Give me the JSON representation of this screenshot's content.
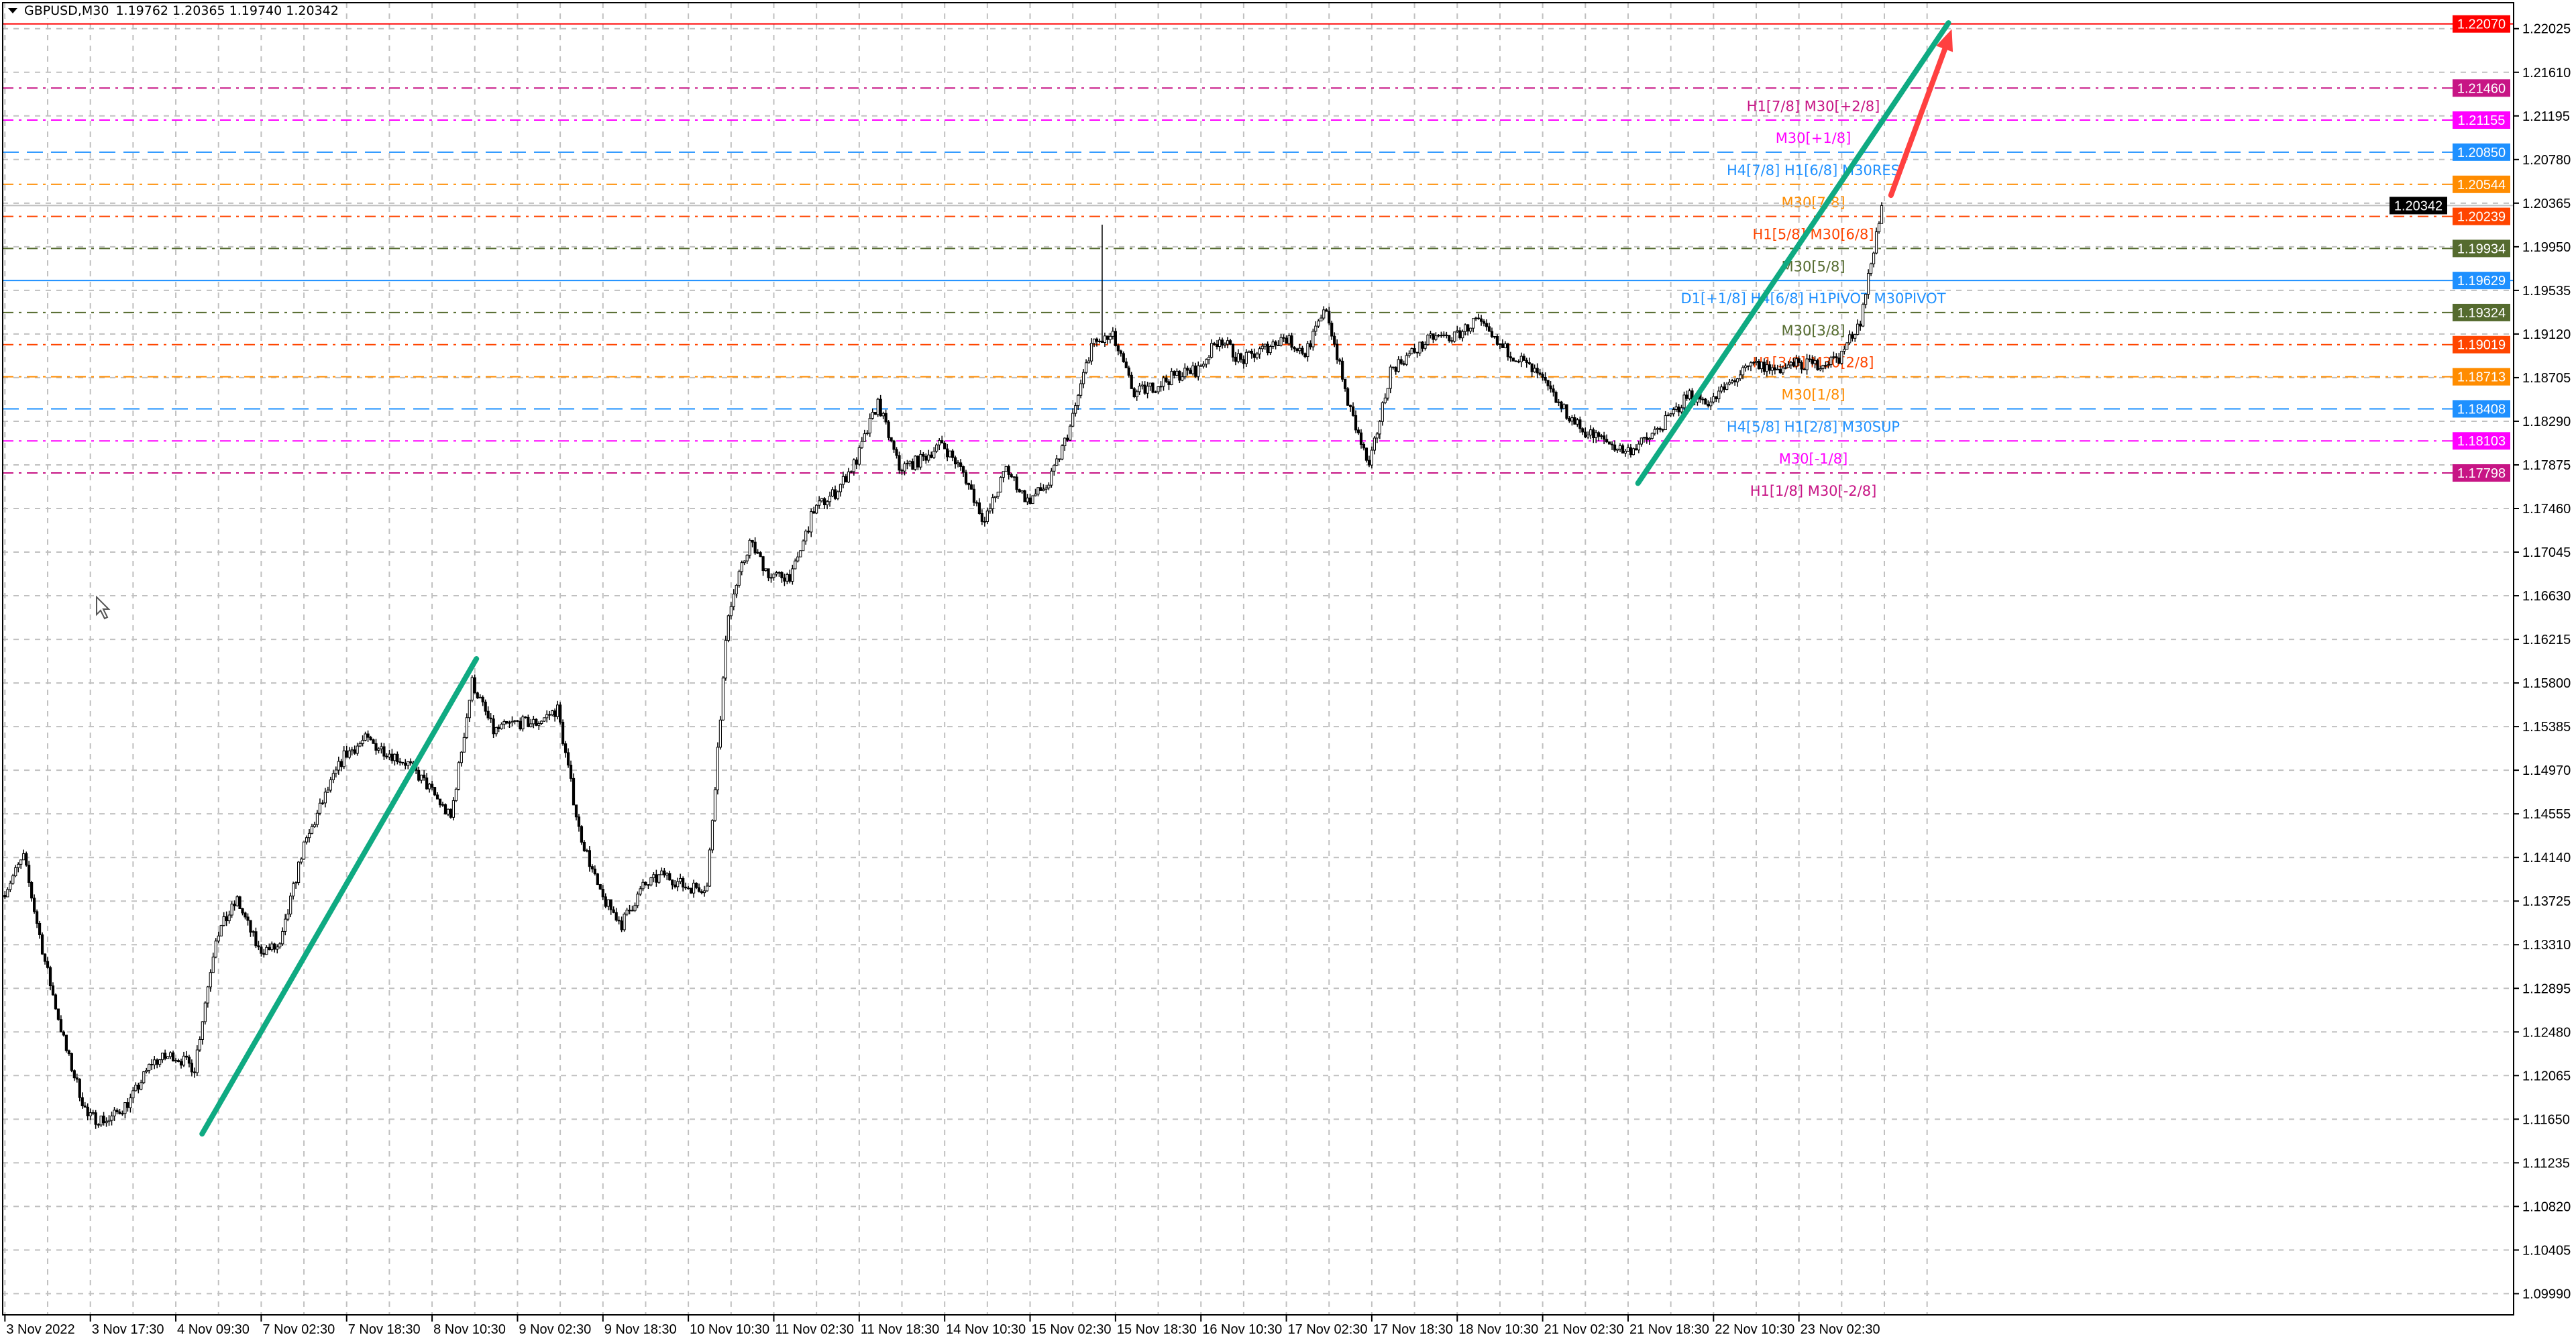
{
  "header": {
    "symbol": "GBPUSD,M30",
    "ohlc": "1.19762 1.20365 1.19740 1.20342",
    "menu_icon": "triangle-down-icon"
  },
  "chart_data": {
    "type": "candlestick",
    "symbol": "GBPUSD",
    "timeframe": "M30",
    "current_price": 1.20342,
    "price_ticks": [
      "1.22025",
      "1.21610",
      "1.21195",
      "1.20780",
      "1.20365",
      "1.19950",
      "1.19535",
      "1.19120",
      "1.18705",
      "1.18290",
      "1.17875",
      "1.17460",
      "1.17045",
      "1.16630",
      "1.16215",
      "1.15800",
      "1.15385",
      "1.14970",
      "1.14555",
      "1.14140",
      "1.13725",
      "1.13310",
      "1.12895",
      "1.12480",
      "1.12065",
      "1.11650",
      "1.11235",
      "1.10820",
      "1.10405",
      "1.09990"
    ],
    "time_ticks": [
      "3 Nov 2022",
      "3 Nov 17:30",
      "4 Nov 09:30",
      "7 Nov 02:30",
      "7 Nov 18:30",
      "8 Nov 10:30",
      "9 Nov 02:30",
      "9 Nov 18:30",
      "10 Nov 10:30",
      "11 Nov 02:30",
      "11 Nov 18:30",
      "14 Nov 10:30",
      "15 Nov 02:30",
      "15 Nov 18:30",
      "16 Nov 10:30",
      "17 Nov 02:30",
      "17 Nov 18:30",
      "18 Nov 10:30",
      "21 Nov 02:30",
      "21 Nov 18:30",
      "22 Nov 10:30",
      "23 Nov 02:30"
    ],
    "approx_closes_every_4h": [
      1.1378,
      1.1414,
      1.1315,
      1.123,
      1.1167,
      1.1164,
      1.1183,
      1.1219,
      1.1226,
      1.1214,
      1.1339,
      1.1373,
      1.1326,
      1.1328,
      1.1417,
      1.1467,
      1.1511,
      1.1526,
      1.1515,
      1.1503,
      1.148,
      1.1451,
      1.1581,
      1.1534,
      1.1542,
      1.1542,
      1.1555,
      1.1441,
      1.1378,
      1.1351,
      1.1386,
      1.1398,
      1.1386,
      1.1386,
      1.1648,
      1.1714,
      1.168,
      1.1683,
      1.1745,
      1.1761,
      1.1792,
      1.1847,
      1.1784,
      1.1792,
      1.1808,
      1.178,
      1.1733,
      1.1784,
      1.1753,
      1.1769,
      1.1823,
      1.1902,
      1.1909,
      1.1855,
      1.1863,
      1.1873,
      1.1878,
      1.1909,
      1.1886,
      1.1897,
      1.1909,
      1.1894,
      1.1936,
      1.1847,
      1.1784,
      1.1878,
      1.1894,
      1.1909,
      1.1909,
      1.1925,
      1.1902,
      1.1889,
      1.187,
      1.1842,
      1.182,
      1.1811,
      1.18,
      1.1811,
      1.1831,
      1.1855,
      1.1847,
      1.1867,
      1.1883,
      1.1878,
      1.1883,
      1.1883,
      1.1889,
      1.1925,
      1.20342
    ],
    "levels": [
      {
        "price": "1.22070",
        "label": "",
        "color": "#FF0000",
        "style": "solid"
      },
      {
        "price": "1.21460",
        "label": "H1[7/8] M30[+2/8]",
        "color": "#C71585",
        "style": "dashdot"
      },
      {
        "price": "1.21155",
        "label": "M30[+1/8]",
        "color": "#FF00FF",
        "style": "dashdot"
      },
      {
        "price": "1.20850",
        "label": "H4[7/8] H1[6/8] M30RES",
        "color": "#1E90FF",
        "style": "dash"
      },
      {
        "price": "1.20544",
        "label": "M30[7/8]",
        "color": "#FF8C00",
        "style": "dashdot"
      },
      {
        "price": "1.20239",
        "label": "H1[5/8] M30[6/8]",
        "color": "#FF4500",
        "style": "dashdot"
      },
      {
        "price": "1.19934",
        "label": "M30[5/8]",
        "color": "#556B2F",
        "style": "dashdot"
      },
      {
        "price": "1.19629",
        "label": "D1[+1/8] H4[6/8] H1PIVOT M30PIVOT",
        "color": "#1E90FF",
        "style": "solid"
      },
      {
        "price": "1.19324",
        "label": "M30[3/8]",
        "color": "#556B2F",
        "style": "dashdot"
      },
      {
        "price": "1.19019",
        "label": "H1[3/8] M30[2/8]",
        "color": "#FF4500",
        "style": "dashdot"
      },
      {
        "price": "1.18713",
        "label": "M30[1/8]",
        "color": "#FF8C00",
        "style": "dashdot"
      },
      {
        "price": "1.18408",
        "label": "H4[5/8] H1[2/8] M30SUP",
        "color": "#1E90FF",
        "style": "dash"
      },
      {
        "price": "1.18103",
        "label": "M30[-1/8]",
        "color": "#FF00FF",
        "style": "dashdot"
      },
      {
        "price": "1.17798",
        "label": "H1[1/8] M30[-2/8]",
        "color": "#C71585",
        "style": "dashdot"
      }
    ],
    "trendlines": [
      {
        "from_price": 1.1151,
        "to_price": 1.1603,
        "color": "#0FAA82"
      },
      {
        "from_price": 1.177,
        "to_price": 1.2208,
        "color": "#0FAA82"
      }
    ],
    "arrow": {
      "from_price": 1.2044,
      "to_price": 1.2202,
      "color": "#FF4040"
    },
    "colors": {
      "bull_body": "#FFFFFF",
      "bear_body": "#000000",
      "wick": "#000000",
      "grid": "#C0C0C0",
      "current_price_bg": "#000000"
    }
  }
}
